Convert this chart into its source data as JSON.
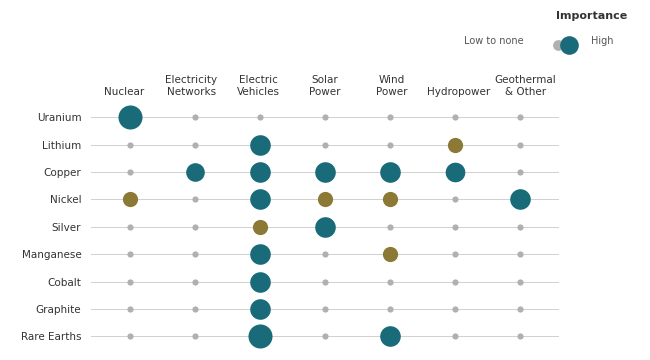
{
  "minerals": [
    "Uranium",
    "Lithium",
    "Copper",
    "Nickel",
    "Silver",
    "Manganese",
    "Cobalt",
    "Graphite",
    "Rare Earths"
  ],
  "energy_types": [
    "Nuclear",
    "Electricity\nNetworks",
    "Electric\nVehicles",
    "Solar\nPower",
    "Wind\nPower",
    "Hydropower",
    "Geothermal\n& Other"
  ],
  "bubble_data": [
    [
      [
        "teal",
        300
      ],
      [
        "gray",
        20
      ],
      [
        "gray",
        20
      ],
      [
        "gray",
        20
      ],
      [
        "gray",
        20
      ],
      [
        "gray",
        20
      ],
      [
        "gray",
        20
      ]
    ],
    [
      [
        "gray",
        20
      ],
      [
        "gray",
        20
      ],
      [
        "teal",
        220
      ],
      [
        "gray",
        20
      ],
      [
        "gray",
        20
      ],
      [
        "gold",
        120
      ],
      [
        "gray",
        20
      ]
    ],
    [
      [
        "gray",
        20
      ],
      [
        "teal",
        180
      ],
      [
        "teal",
        220
      ],
      [
        "teal",
        220
      ],
      [
        "teal",
        220
      ],
      [
        "teal",
        200
      ],
      [
        "gray",
        20
      ]
    ],
    [
      [
        "gold",
        120
      ],
      [
        "gray",
        20
      ],
      [
        "teal",
        220
      ],
      [
        "gold",
        120
      ],
      [
        "gold",
        120
      ],
      [
        "gray",
        20
      ],
      [
        "teal",
        220
      ]
    ],
    [
      [
        "gray",
        20
      ],
      [
        "gray",
        20
      ],
      [
        "gold",
        120
      ],
      [
        "teal",
        220
      ],
      [
        "gray",
        20
      ],
      [
        "gray",
        20
      ],
      [
        "gray",
        20
      ]
    ],
    [
      [
        "gray",
        20
      ],
      [
        "gray",
        20
      ],
      [
        "teal",
        220
      ],
      [
        "gray",
        20
      ],
      [
        "gold",
        120
      ],
      [
        "gray",
        20
      ],
      [
        "gray",
        20
      ]
    ],
    [
      [
        "gray",
        20
      ],
      [
        "gray",
        20
      ],
      [
        "teal",
        220
      ],
      [
        "gray",
        20
      ],
      [
        "gray",
        20
      ],
      [
        "gray",
        20
      ],
      [
        "gray",
        20
      ]
    ],
    [
      [
        "gray",
        20
      ],
      [
        "gray",
        20
      ],
      [
        "teal",
        220
      ],
      [
        "gray",
        20
      ],
      [
        "gray",
        20
      ],
      [
        "gray",
        20
      ],
      [
        "gray",
        20
      ]
    ],
    [
      [
        "gray",
        20
      ],
      [
        "gray",
        20
      ],
      [
        "teal",
        300
      ],
      [
        "gray",
        20
      ],
      [
        "teal",
        220
      ],
      [
        "gray",
        20
      ],
      [
        "gray",
        20
      ]
    ]
  ],
  "color_map": {
    "teal": "#1a6b7a",
    "gold": "#8b7935",
    "gray": "#b0b0b0"
  },
  "legend_title": "Importance",
  "bg_color": "#ffffff"
}
